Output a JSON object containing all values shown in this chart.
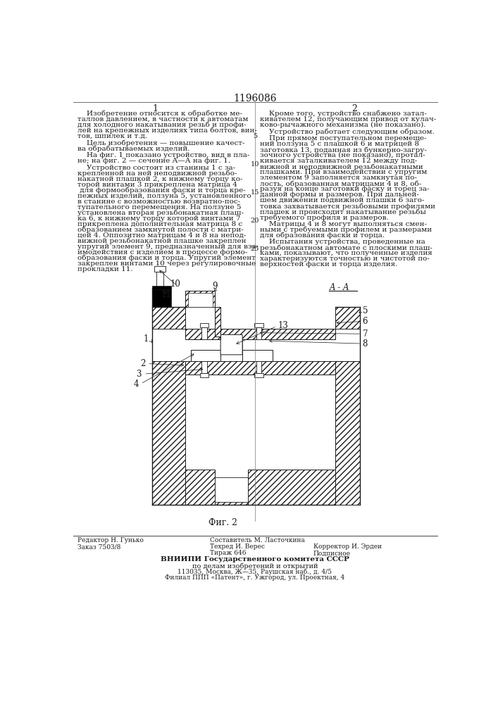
{
  "patent_number": "1196086",
  "col1_number": "1",
  "col2_number": "2",
  "background_color": "#ffffff",
  "text_color": "#1a1a1a",
  "col1_paragraphs": [
    "    Изобретение относится к обработке ме-\nталлов давлением, в частности к автоматам\nдля холодного накатывания резьб и профи-\nлей на крепежных изделиях типа болтов, вин-\nтов, шпилек и т.д.",
    "    Цель изобретения — повышение качест-\nва обрабатываемых изделий.",
    "    На фиг. 1 показано устройство, вид в пла-\nне; на фиг. 2 — сечение А—А на фиг. 1.",
    "    Устройство состоит из станины 1 с за-\nкрепленной на ней неподвижной резьбо-\nнакатной плашкой 2, к нижнему торцу ко-\nторой винтами 3 прикреплена матрица 4\n для формообразования фаски и торца кре-\nпежных изделий, ползуна 5, установленного\nв станине с возможностью возвратно-пос-\nтупательного перемещения. На ползуне 5\nустановлена вторая резьбонакатная плаш-\nка 6, к нижнему торцу которой винтами 7\nприкреплена дополнительная матрица 8 с\nобразованием замкнутой полости с матри-\nцей 4. Оппозитно матрицам 4 и 8 на непод-\nвижной резьбонакатной плашке закреплен\nупругий элемент 9, предназначенный для вза-\nимодействия с изделием в процессе формо-\nобразования фаски и торца. Упругий элемент\nзакреплен винтами 10 через регулировочные\nпрокладки 11."
  ],
  "col2_paragraphs": [
    "    Кроме того, устройство снабжено затал-\nкивателем 12, получающим привод от кулач-\nково-рычажного механизма (не показано).",
    "    Устройство работает следующим образом.",
    "    При прямом поступательном перемеще-\nний ползуна 5 с плашкой 6 и матрицей 8\nзаготовка 13, поданная из бункерно-загру-\nзочного устройства (не показано), протал-\nкивается заталкивателем 12 между под-\nвижной и неподвижной резьбонакатными\nплашками. При взаимодействии с упругим\nэлементом 9 заполняется замкнутая по-\nлость, образованная матрицами 4 и 8, об-\nразуя на конце заготовки фаску и торец за-\nданной формы и размеров. При дальней-\nшем движении подвижной плашки 6 заго-\nтовка захватывается резьбовыми профилями\nплашек и происходит накатывание резьбы\nтребуемого профиля и размеров.",
    "    Матрицы 4 и 8 могут выполняться смен-\nными с требуемыми профилем и размерами\nдля образования фаски и торца.",
    "    Испытания устройства, проведенные на\nрезьбонакатном автомате с плоскими плаш-\nками, показывают, что полученные изделия\nхарактеризуются точностью и чистотой по-\nверхностей фаски и торца изделия."
  ],
  "fig_caption": "Фиг. 2",
  "bottom_editor": "Редактор Н. Гунько",
  "bottom_composer": "Составитель М. Ласточкина",
  "bottom_techred": "Техред И. Верес",
  "bottom_corrector": "Корректор И. Эрдеи",
  "bottom_order": "Заказ 7503/8",
  "bottom_tirazh": "Тираж 646",
  "bottom_podpis": "Подписное",
  "bottom_org": "ВНИИПИ Государственного комитета СССР",
  "bottom_org2": "по делам изобретений и открытий",
  "bottom_addr": "113035, Москва, Ж—35, Раушская наб., д. 4/5",
  "bottom_branch": "Филиал ППП «Патент», г. Ужгород, ул. Проектная, 4"
}
